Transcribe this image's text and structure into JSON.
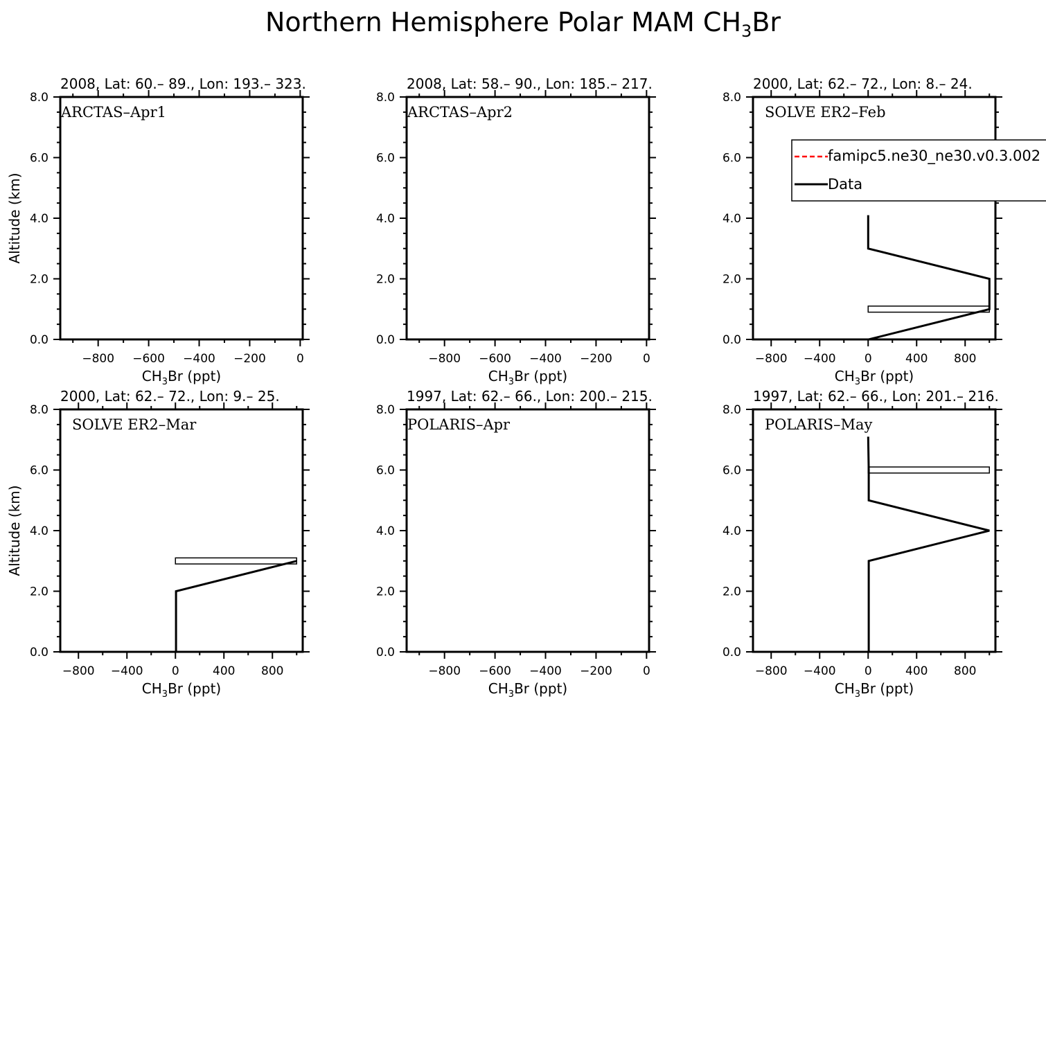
{
  "page": {
    "title_main": "Northern Hemisphere Polar MAM CH",
    "title_sub": "3",
    "title_tail": "Br"
  },
  "legend": {
    "model_label": "famipc5.ne30_ne30.v0.3.002",
    "model_color": "#ff0000",
    "data_label": "Data",
    "data_color": "#000000"
  },
  "chart_data": [
    {
      "type": "line",
      "header": "2008, Lat:  60.– 89., Lon: 193.– 323.",
      "campaign": "ARCTAS–Apr1",
      "xlabel_main": "CH",
      "xlabel_sub": "3",
      "xlabel_tail": "Br (ppt)",
      "ylabel": "Altitude (km)",
      "xlim": [
        -950,
        10
      ],
      "ylim": [
        0,
        8
      ],
      "xticks": [
        -800,
        -600,
        -400,
        -200,
        0
      ],
      "xtick_labels": [
        "−800",
        "−600",
        "−400",
        "−200",
        "0"
      ],
      "yticks": [
        0,
        2,
        4,
        6,
        8
      ],
      "ytick_labels": [
        "0.0",
        "2.0",
        "4.0",
        "6.0",
        "8.0"
      ],
      "series": [],
      "boxes": []
    },
    {
      "type": "line",
      "header": "2008, Lat:  58.– 90., Lon: 185.– 217.",
      "campaign": "ARCTAS–Apr2",
      "xlabel_main": "CH",
      "xlabel_sub": "3",
      "xlabel_tail": "Br (ppt)",
      "ylabel": "",
      "xlim": [
        -950,
        10
      ],
      "ylim": [
        0,
        8
      ],
      "xticks": [
        -800,
        -600,
        -400,
        -200,
        0
      ],
      "xtick_labels": [
        "−800",
        "−600",
        "−400",
        "−200",
        "0"
      ],
      "yticks": [
        0,
        2,
        4,
        6,
        8
      ],
      "ytick_labels": [
        "0.0",
        "2.0",
        "4.0",
        "6.0",
        "8.0"
      ],
      "series": [],
      "boxes": []
    },
    {
      "type": "line",
      "header": "2000, Lat: 62.– 72., Lon: 8.– 24.",
      "campaign": "SOLVE ER2–Feb",
      "xlabel_main": "CH",
      "xlabel_sub": "3",
      "xlabel_tail": "Br (ppt)",
      "ylabel": "",
      "xlim": [
        -950,
        1050
      ],
      "ylim": [
        0,
        8
      ],
      "xticks": [
        -800,
        -400,
        0,
        400,
        800
      ],
      "xtick_labels": [
        "−800",
        "−400",
        "0",
        "400",
        "800"
      ],
      "yticks": [
        0,
        2,
        4,
        6,
        8
      ],
      "ytick_labels": [
        "0.0",
        "2.0",
        "4.0",
        "6.0",
        "8.0"
      ],
      "series": [
        {
          "name": "Data",
          "x": [
            5,
            1000,
            1000,
            0,
            0,
            0
          ],
          "y": [
            0,
            1,
            2,
            3,
            3,
            4.1
          ]
        }
      ],
      "boxes": [
        {
          "x0": 0,
          "x1": 1000,
          "y0": 0.9,
          "y1": 1.1
        }
      ],
      "show_legend": true
    },
    {
      "type": "line",
      "header": "2000, Lat: 62.– 72., Lon: 9.– 25.",
      "campaign": "SOLVE ER2–Mar",
      "xlabel_main": "CH",
      "xlabel_sub": "3",
      "xlabel_tail": "Br (ppt)",
      "ylabel": "Altitude (km)",
      "xlim": [
        -950,
        1050
      ],
      "ylim": [
        0,
        8
      ],
      "xticks": [
        -800,
        -400,
        0,
        400,
        800
      ],
      "xtick_labels": [
        "−800",
        "−400",
        "0",
        "400",
        "800"
      ],
      "yticks": [
        0,
        2,
        4,
        6,
        8
      ],
      "ytick_labels": [
        "0.0",
        "2.0",
        "4.0",
        "6.0",
        "8.0"
      ],
      "series": [
        {
          "name": "Data",
          "x": [
            5,
            5,
            1000
          ],
          "y": [
            0,
            2,
            3
          ]
        }
      ],
      "boxes": [
        {
          "x0": 0,
          "x1": 1000,
          "y0": 2.9,
          "y1": 3.1
        }
      ]
    },
    {
      "type": "line",
      "header": "1997, Lat: 62.– 66., Lon: 200.– 215.",
      "campaign": "POLARIS–Apr",
      "xlabel_main": "CH",
      "xlabel_sub": "3",
      "xlabel_tail": "Br (ppt)",
      "ylabel": "",
      "xlim": [
        -950,
        10
      ],
      "ylim": [
        0,
        8
      ],
      "xticks": [
        -800,
        -600,
        -400,
        -200,
        0
      ],
      "xtick_labels": [
        "−800",
        "−600",
        "−400",
        "−200",
        "0"
      ],
      "yticks": [
        0,
        2,
        4,
        6,
        8
      ],
      "ytick_labels": [
        "0.0",
        "2.0",
        "4.0",
        "6.0",
        "8.0"
      ],
      "series": [],
      "boxes": []
    },
    {
      "type": "line",
      "header": "1997, Lat: 62.– 66., Lon: 201.– 216.",
      "campaign": "POLARIS–May",
      "xlabel_main": "CH",
      "xlabel_sub": "3",
      "xlabel_tail": "Br (ppt)",
      "ylabel": "",
      "xlim": [
        -950,
        1050
      ],
      "ylim": [
        0,
        8
      ],
      "xticks": [
        -800,
        -400,
        0,
        400,
        800
      ],
      "xtick_labels": [
        "−800",
        "−400",
        "0",
        "400",
        "800"
      ],
      "yticks": [
        0,
        2,
        4,
        6,
        8
      ],
      "ytick_labels": [
        "0.0",
        "2.0",
        "4.0",
        "6.0",
        "8.0"
      ],
      "series": [
        {
          "name": "Data",
          "x": [
            5,
            5,
            1000,
            5,
            5,
            0
          ],
          "y": [
            0,
            3,
            4,
            5,
            6,
            7.1
          ]
        }
      ],
      "boxes": [
        {
          "x0": 0,
          "x1": 1000,
          "y0": 5.9,
          "y1": 6.1
        }
      ]
    }
  ]
}
